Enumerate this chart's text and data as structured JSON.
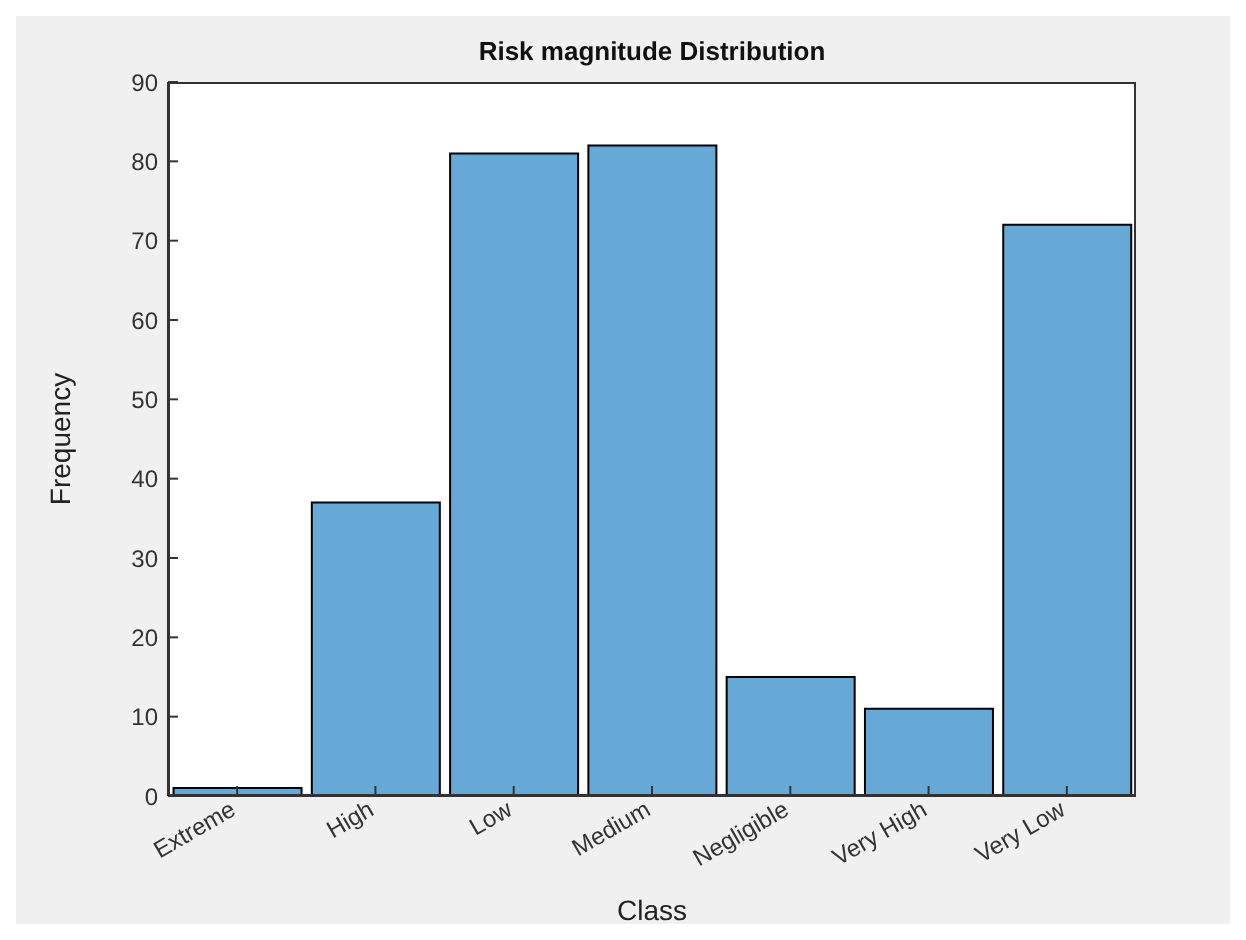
{
  "chart_data": {
    "type": "bar",
    "title": "Risk magnitude Distribution",
    "xlabel": "Class",
    "ylabel": "Frequency",
    "categories": [
      "Extreme",
      "High",
      "Low",
      "Medium",
      "Negligible",
      "Very High",
      "Very Low"
    ],
    "values": [
      1,
      37,
      81,
      82,
      15,
      11,
      72
    ],
    "color": "#66a9d6",
    "ylim": [
      0,
      90
    ],
    "yticks": [
      0,
      10,
      20,
      30,
      40,
      50,
      60,
      70,
      80,
      90
    ],
    "grid": false
  }
}
